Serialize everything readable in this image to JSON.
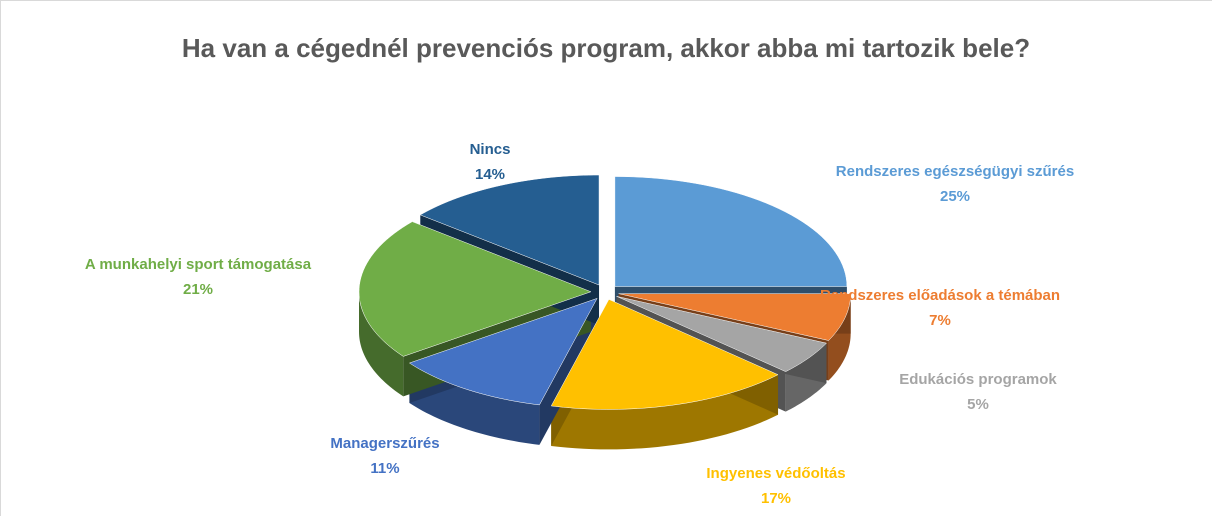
{
  "chart_data": {
    "type": "pie",
    "title": "Ha van a cégednél prevenciós program, akkor abba mi tartozik bele?",
    "categories": [
      "Rendszeres egészségügyi szűrés",
      "Rendszeres előadások a témában",
      "Edukációs programok",
      "Ingyenes védőoltás",
      "Managerszűrés",
      "A munkahelyi sport támogatása",
      "Nincs"
    ],
    "values": [
      25,
      7,
      5,
      17,
      11,
      21,
      14
    ],
    "value_labels": [
      "25%",
      "7%",
      "5%",
      "17%",
      "11%",
      "21%",
      "14%"
    ],
    "colors": [
      "#5b9bd5",
      "#ed7d31",
      "#a5a5a5",
      "#ffc000",
      "#4472c4",
      "#70ad47",
      "#255e91"
    ]
  }
}
